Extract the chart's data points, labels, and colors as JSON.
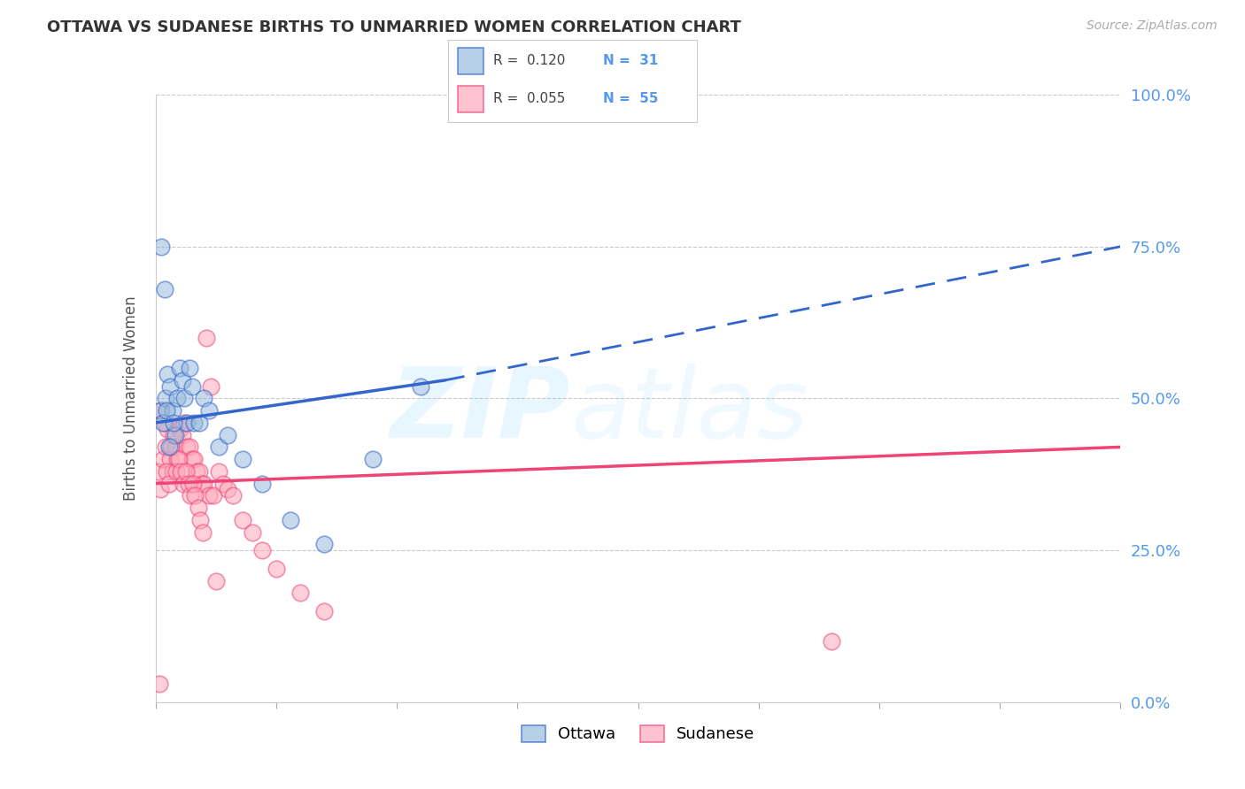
{
  "title": "OTTAWA VS SUDANESE BIRTHS TO UNMARRIED WOMEN CORRELATION CHART",
  "source": "Source: ZipAtlas.com",
  "ylabel": "Births to Unmarried Women",
  "yaxis_ticks": [
    0.0,
    25.0,
    50.0,
    75.0,
    100.0
  ],
  "xmin": 0.0,
  "xmax": 20.0,
  "ymin": 0.0,
  "ymax": 100.0,
  "ottawa_color": "#99BBDD",
  "sudanese_color": "#FFAABB",
  "ottawa_line_color": "#3366CC",
  "sudanese_line_color": "#EE4477",
  "ottawa_R": 0.12,
  "ottawa_N": 31,
  "sudanese_R": 0.055,
  "sudanese_N": 55,
  "ottawa_x": [
    0.1,
    0.15,
    0.2,
    0.25,
    0.3,
    0.35,
    0.4,
    0.45,
    0.5,
    0.55,
    0.6,
    0.65,
    0.7,
    0.75,
    0.8,
    0.9,
    1.0,
    1.1,
    1.3,
    1.5,
    1.8,
    2.2,
    2.8,
    3.5,
    4.5,
    5.5,
    0.12,
    0.18,
    0.22,
    0.28,
    0.38
  ],
  "ottawa_y": [
    48.0,
    46.0,
    50.0,
    54.0,
    52.0,
    48.0,
    44.0,
    50.0,
    55.0,
    53.0,
    50.0,
    46.0,
    55.0,
    52.0,
    46.0,
    46.0,
    50.0,
    48.0,
    42.0,
    44.0,
    40.0,
    36.0,
    30.0,
    26.0,
    40.0,
    52.0,
    75.0,
    68.0,
    48.0,
    42.0,
    46.0
  ],
  "sudanese_x": [
    0.05,
    0.1,
    0.15,
    0.2,
    0.25,
    0.3,
    0.35,
    0.4,
    0.45,
    0.5,
    0.55,
    0.6,
    0.65,
    0.7,
    0.75,
    0.8,
    0.85,
    0.9,
    0.95,
    1.0,
    1.1,
    1.2,
    1.3,
    1.4,
    1.5,
    1.6,
    1.8,
    2.0,
    2.2,
    2.5,
    3.0,
    3.5,
    0.12,
    0.18,
    0.22,
    0.28,
    0.32,
    0.38,
    0.42,
    0.48,
    0.52,
    0.58,
    0.62,
    0.68,
    0.72,
    0.78,
    0.82,
    0.88,
    0.92,
    0.98,
    1.05,
    1.15,
    1.25,
    14.0,
    0.08
  ],
  "sudanese_y": [
    38.0,
    35.0,
    40.0,
    42.0,
    45.0,
    40.0,
    38.0,
    42.0,
    40.0,
    45.0,
    44.0,
    46.0,
    42.0,
    42.0,
    40.0,
    40.0,
    38.0,
    38.0,
    36.0,
    36.0,
    34.0,
    34.0,
    38.0,
    36.0,
    35.0,
    34.0,
    30.0,
    28.0,
    25.0,
    22.0,
    18.0,
    15.0,
    48.0,
    46.0,
    38.0,
    36.0,
    42.0,
    44.0,
    38.0,
    40.0,
    38.0,
    36.0,
    38.0,
    36.0,
    34.0,
    36.0,
    34.0,
    32.0,
    30.0,
    28.0,
    60.0,
    52.0,
    20.0,
    10.0,
    3.0
  ],
  "background_color": "#FFFFFF",
  "grid_color": "#CCCCCC",
  "watermark_zip": "ZIP",
  "watermark_atlas": "atlas"
}
